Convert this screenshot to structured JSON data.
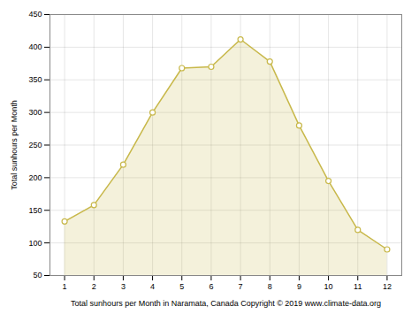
{
  "chart_data": {
    "type": "line",
    "x": [
      1,
      2,
      3,
      4,
      5,
      6,
      7,
      8,
      9,
      10,
      11,
      12
    ],
    "values": [
      133,
      158,
      220,
      300,
      368,
      370,
      412,
      378,
      280,
      195,
      120,
      90
    ],
    "color": "#C8B84A",
    "marker": "circle",
    "xlabel": "Total sunhours per Month in Naramata, Canada Copyright © 2019 www.climate-data.org",
    "ylabel": "Total sunhours per Month",
    "xlim": [
      0.5,
      12.5
    ],
    "xticks": [
      1,
      2,
      3,
      4,
      5,
      6,
      7,
      8,
      9,
      10,
      11,
      12
    ],
    "ylim": [
      50,
      450
    ],
    "yticks": [
      50,
      100,
      150,
      200,
      250,
      300,
      350,
      400,
      450
    ],
    "grid": true
  }
}
